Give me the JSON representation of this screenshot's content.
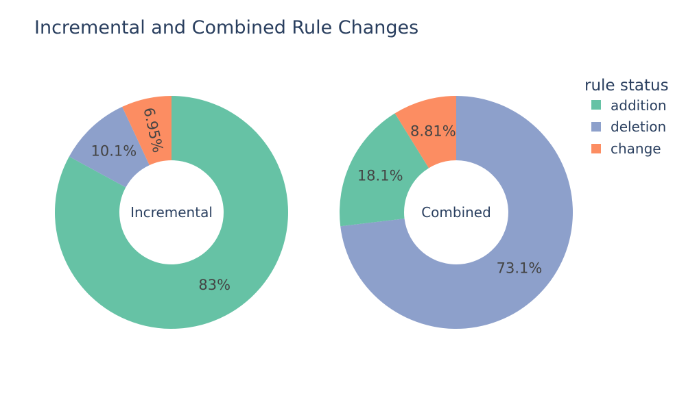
{
  "chart_data": {
    "type": "pie",
    "title": "Incremental and Combined Rule Changes",
    "legend": {
      "title": "rule status",
      "placement": "top-right",
      "entries": [
        {
          "name": "addition",
          "color": "#66c2a5"
        },
        {
          "name": "deletion",
          "color": "#8da0cb"
        },
        {
          "name": "change",
          "color": "#fc8d62"
        }
      ]
    },
    "charts": [
      {
        "hole_label": "Incremental",
        "slices": [
          {
            "category": "addition",
            "value": 83.0,
            "label": "83%"
          },
          {
            "category": "deletion",
            "value": 10.1,
            "label": "10.1%"
          },
          {
            "category": "change",
            "value": 6.95,
            "label": "6.95%"
          }
        ]
      },
      {
        "hole_label": "Combined",
        "slices": [
          {
            "category": "addition",
            "value": 18.1,
            "label": "18.1%"
          },
          {
            "category": "deletion",
            "value": 73.1,
            "label": "73.1%"
          },
          {
            "category": "change",
            "value": 8.81,
            "label": "8.81%"
          }
        ]
      }
    ]
  }
}
